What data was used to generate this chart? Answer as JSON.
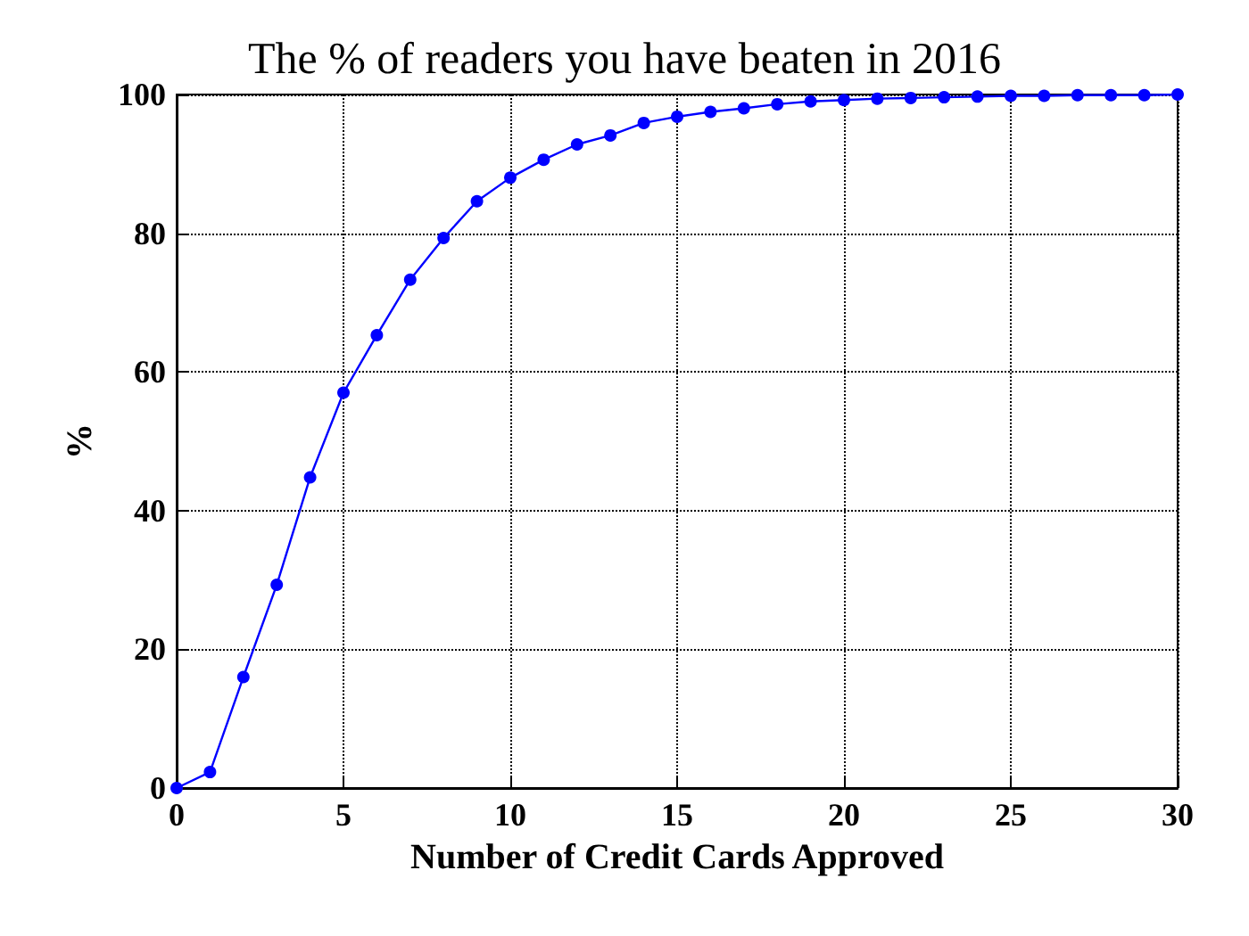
{
  "chart_data": {
    "type": "line",
    "title": "The % of readers you have beaten in 2016",
    "xlabel": "Number of Credit Cards Approved",
    "ylabel": "%",
    "x": [
      0,
      1,
      2,
      3,
      4,
      5,
      6,
      7,
      8,
      9,
      10,
      11,
      12,
      13,
      14,
      15,
      16,
      17,
      18,
      19,
      20,
      21,
      22,
      23,
      24,
      25,
      26,
      27,
      28,
      29,
      30
    ],
    "series": [
      {
        "color": "#0000ff",
        "values": [
          0,
          2.3,
          16,
          29.3,
          44.8,
          57,
          65.3,
          73.3,
          79.3,
          84.6,
          88,
          90.6,
          92.8,
          94.1,
          95.9,
          96.8,
          97.5,
          98,
          98.6,
          99,
          99.2,
          99.4,
          99.5,
          99.6,
          99.7,
          99.8,
          99.8,
          99.9,
          99.9,
          99.9,
          100
        ]
      }
    ],
    "xlim": [
      0,
      30
    ],
    "xticks": [
      0,
      5,
      10,
      15,
      20,
      25,
      30
    ],
    "ylim": [
      0,
      100
    ],
    "yticks": [
      0,
      20,
      40,
      60,
      80,
      100
    ],
    "grid": true,
    "marker": "circle",
    "line_style": "solid"
  }
}
